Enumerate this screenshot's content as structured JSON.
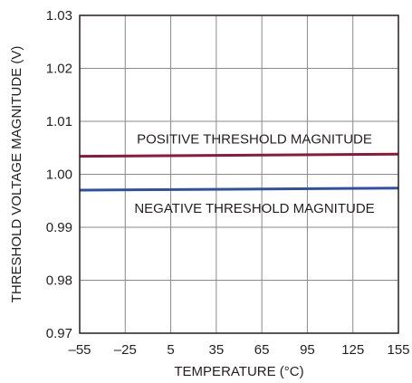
{
  "chart_data": {
    "type": "line",
    "title": "",
    "xlabel": "TEMPERATURE (°C)",
    "ylabel": "THRESHOLD VOLTAGE MAGNITUDE (V)",
    "xlim": [
      -55,
      155
    ],
    "ylim": [
      0.97,
      1.03
    ],
    "x_ticks": [
      -55,
      -25,
      5,
      35,
      65,
      95,
      125,
      155
    ],
    "x_tick_labels": [
      "–55",
      "–25",
      "5",
      "35",
      "65",
      "95",
      "125",
      "155"
    ],
    "y_ticks": [
      0.97,
      0.98,
      0.99,
      1.0,
      1.01,
      1.02,
      1.03
    ],
    "y_tick_labels": [
      "0.97",
      "0.98",
      "0.99",
      "1.00",
      "1.01",
      "1.02",
      "1.03"
    ],
    "grid": true,
    "series": [
      {
        "name": "POSITIVE THRESHOLD MAGNITUDE",
        "color": "#8b1a3a",
        "x": [
          -55,
          155
        ],
        "y": [
          1.0034,
          1.0038
        ]
      },
      {
        "name": "NEGATIVE THRESHOLD MAGNITUDE",
        "color": "#3050a0",
        "x": [
          -55,
          155
        ],
        "y": [
          0.997,
          0.9974
        ]
      }
    ]
  }
}
